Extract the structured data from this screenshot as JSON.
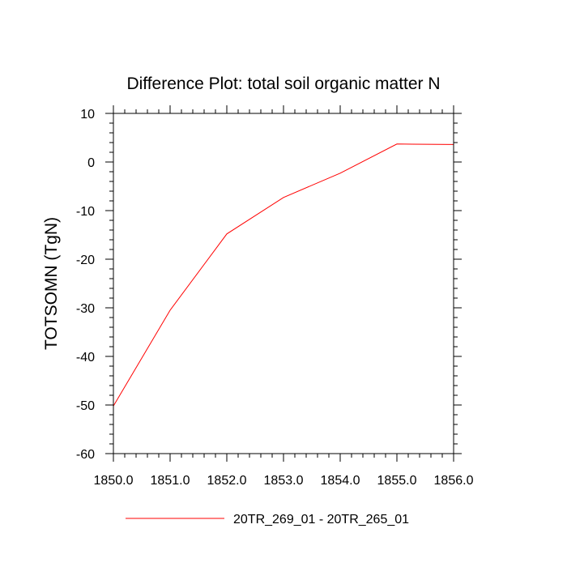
{
  "chart_data": {
    "type": "line",
    "title": "Difference Plot: total soil organic matter N",
    "xlabel": "",
    "ylabel": "TOTSOMN  (TgN)",
    "xlim": [
      1850.0,
      1856.0
    ],
    "ylim": [
      -60,
      10
    ],
    "xticks": [
      "1850.0",
      "1851.0",
      "1852.0",
      "1853.0",
      "1854.0",
      "1855.0",
      "1856.0"
    ],
    "yticks": [
      "10",
      "0",
      "-10",
      "-20",
      "-30",
      "-40",
      "-50",
      "-60"
    ],
    "series": [
      {
        "name": "20TR_269_01 - 20TR_265_01",
        "color": "#ff0000",
        "x": [
          1850.0,
          1851.0,
          1852.0,
          1853.0,
          1854.0,
          1855.0,
          1856.0
        ],
        "values": [
          -50.2,
          -30.5,
          -14.8,
          -7.3,
          -2.3,
          3.7,
          3.6
        ]
      }
    ]
  }
}
